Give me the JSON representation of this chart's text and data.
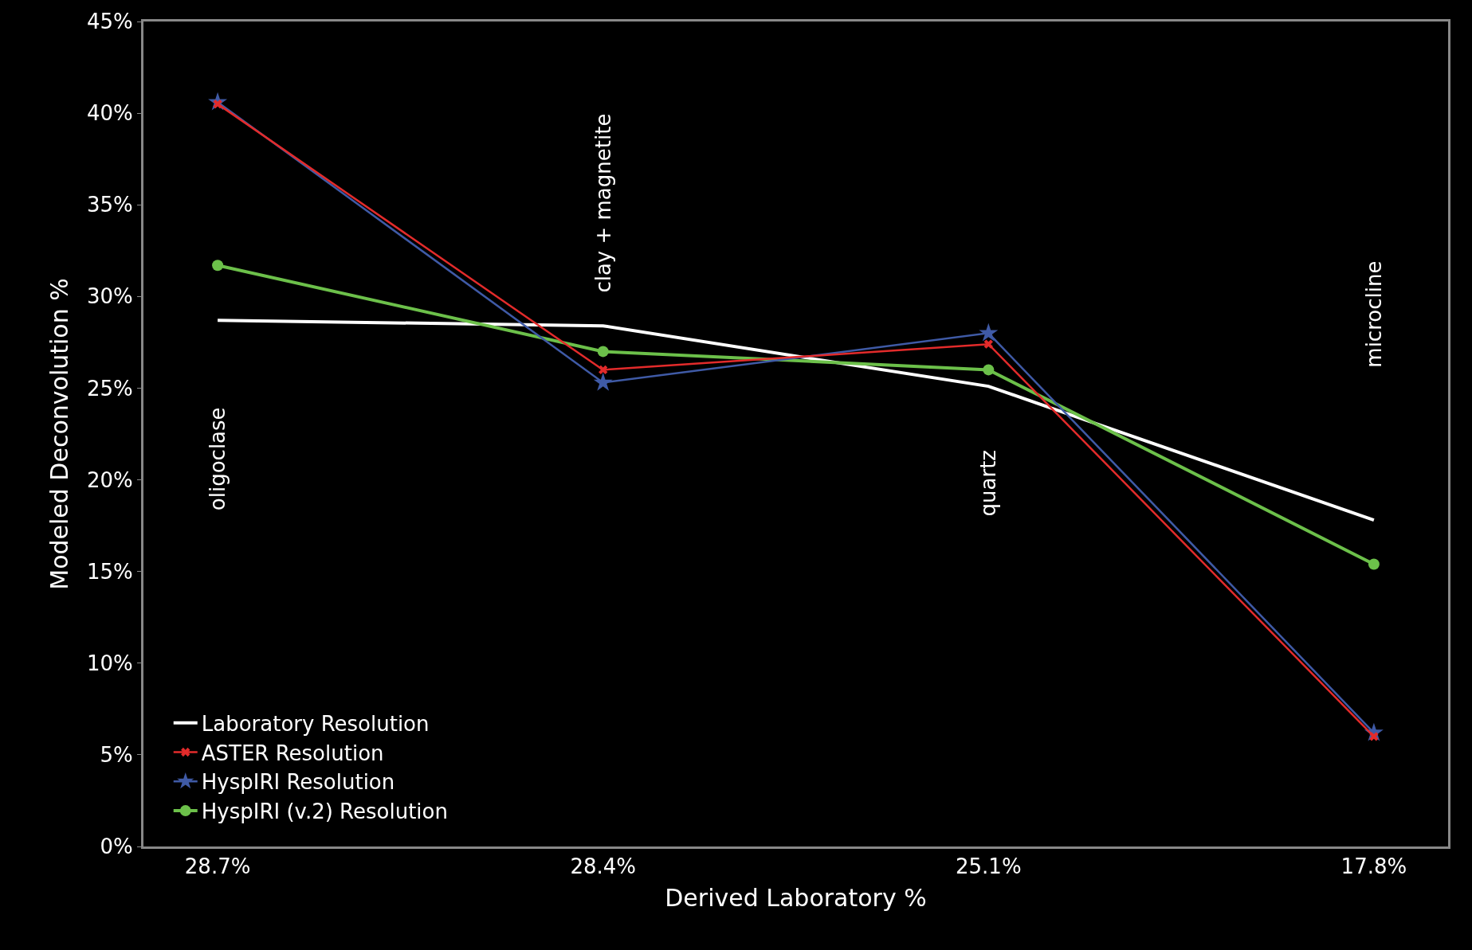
{
  "chart_data": {
    "type": "line",
    "xlabel": "Derived Laboratory %",
    "ylabel": "Modeled Deconvolution %",
    "categories": [
      "28.7%",
      "28.4%",
      "25.1%",
      "17.8%"
    ],
    "series": [
      {
        "name": "Laboratory Resolution",
        "color": "#ffffff",
        "marker": "none",
        "values": [
          28.7,
          28.4,
          25.1,
          17.8
        ]
      },
      {
        "name": "ASTER Resolution",
        "color": "#e32b2b",
        "marker": "cross",
        "values": [
          40.5,
          26.0,
          27.4,
          6.0
        ]
      },
      {
        "name": "HyspIRI Resolution",
        "color": "#3f5aa6",
        "marker": "star",
        "values": [
          40.6,
          25.3,
          28.0,
          6.2
        ]
      },
      {
        "name": "HyspIRI (v.2) Resolution",
        "color": "#6cc04a",
        "marker": "circle",
        "values": [
          31.7,
          27.0,
          26.0,
          15.4
        ]
      }
    ],
    "annotations": [
      "oligoclase",
      "clay + magnetite",
      "quartz",
      "microcline"
    ],
    "ylim": [
      0,
      45
    ],
    "yticks": [
      {
        "value": 0,
        "label": "0%"
      },
      {
        "value": 5,
        "label": "5%"
      },
      {
        "value": 10,
        "label": "10%"
      },
      {
        "value": 15,
        "label": "15%"
      },
      {
        "value": 20,
        "label": "20%"
      },
      {
        "value": 25,
        "label": "25%"
      },
      {
        "value": 30,
        "label": "30%"
      },
      {
        "value": 35,
        "label": "35%"
      },
      {
        "value": 40,
        "label": "40%"
      },
      {
        "value": 45,
        "label": "45%"
      }
    ],
    "grid": false,
    "legend": "bottom left"
  }
}
